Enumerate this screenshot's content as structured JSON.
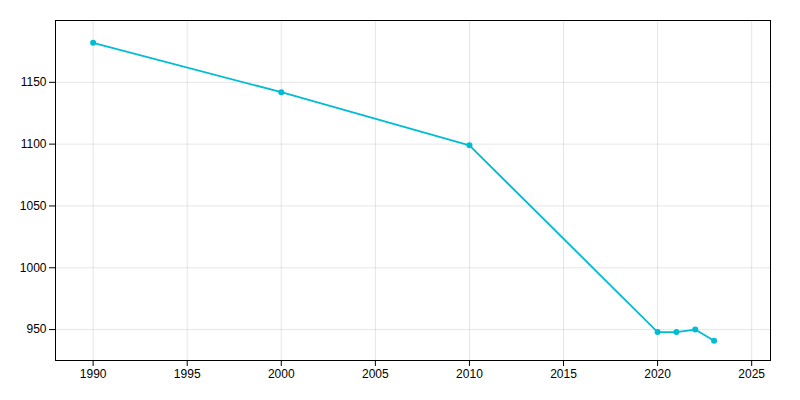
{
  "chart_data": {
    "type": "line",
    "x": [
      1990,
      2000,
      2010,
      2020,
      2021,
      2022,
      2023
    ],
    "values": [
      1182,
      1142,
      1099,
      948,
      948,
      950,
      941
    ],
    "color": "#00bcd4",
    "marker": "circle",
    "xlim": [
      1988,
      2026
    ],
    "ylim": [
      925,
      1200
    ],
    "xticks": [
      1990,
      1995,
      2000,
      2005,
      2010,
      2015,
      2020,
      2025
    ],
    "yticks": [
      950,
      1000,
      1050,
      1100,
      1150
    ],
    "grid": true
  }
}
